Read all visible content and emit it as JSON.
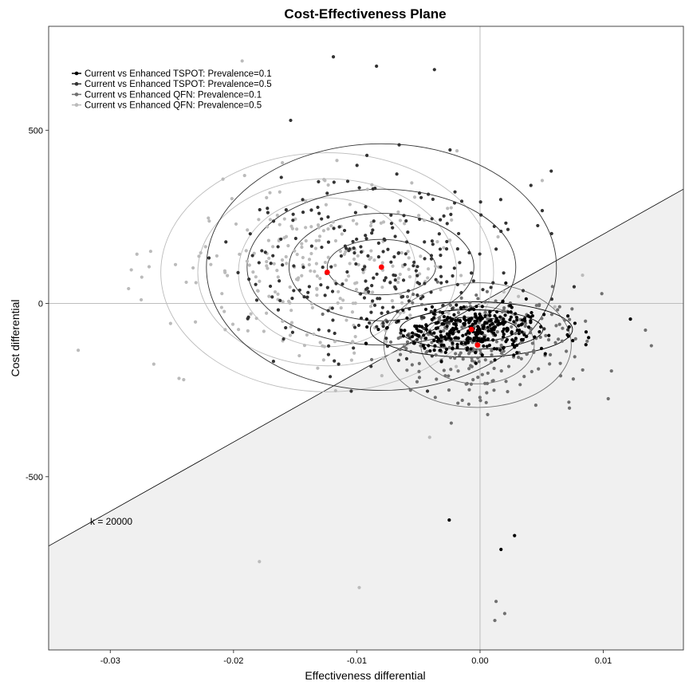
{
  "chart_data": {
    "type": "scatter",
    "title": "Cost-Effectiveness Plane",
    "xlabel": "Effectiveness differential",
    "ylabel": "Cost differential",
    "xlim": [
      -0.035,
      0.0165
    ],
    "ylim": [
      -1000,
      800
    ],
    "x_ticks": [
      {
        "value": -0.03,
        "label": "-0.03"
      },
      {
        "value": -0.02,
        "label": "-0.02"
      },
      {
        "value": -0.01,
        "label": "-0.01"
      },
      {
        "value": 0,
        "label": "0.00"
      },
      {
        "value": 0.01,
        "label": "0.01"
      }
    ],
    "y_ticks": [
      {
        "value": 500,
        "label": "500"
      },
      {
        "value": 0,
        "label": "0"
      },
      {
        "value": -500,
        "label": "-500"
      }
    ],
    "reference_lines": [
      "x = 0",
      "y = 0"
    ],
    "wtp_line": {
      "slope": 20000,
      "label": "k = 20000",
      "region_below_shaded": true,
      "shade_color": "#f0f0f0"
    },
    "legend_position": "top-left",
    "grid": false,
    "series": [
      {
        "name": "Current vs Enhanced TSPOT: Prevalence=0.1",
        "color": "#000000",
        "mean": [
          -0.0007,
          -75
        ],
        "sd": [
          0.0032,
          35
        ],
        "n": 330,
        "ellipse_radii": [
          [
            0.0082,
            80
          ],
          [
            0.0058,
            57
          ],
          [
            0.0037,
            35
          ]
        ]
      },
      {
        "name": "Current vs Enhanced TSPOT: Prevalence=0.5",
        "color": "#333333",
        "mean": [
          -0.008,
          105
        ],
        "sd": [
          0.0055,
          135
        ],
        "n": 280,
        "ellipse_radii": [
          [
            0.0142,
            356
          ],
          [
            0.0109,
            225
          ],
          [
            0.0075,
            155
          ],
          [
            0.0044,
            80
          ]
        ]
      },
      {
        "name": "Current vs Enhanced QFN: Prevalence=0.1",
        "color": "#707070",
        "mean": [
          -0.0002,
          -120
        ],
        "sd": [
          0.004,
          75
        ],
        "n": 260,
        "ellipse_radii": [
          [
            0.0076,
            180
          ],
          [
            0.0046,
            112
          ]
        ]
      },
      {
        "name": "Current vs Enhanced QFN: Prevalence=0.5",
        "color": "#bbbbbb",
        "mean": [
          -0.0124,
          90
        ],
        "sd": [
          0.0062,
          130
        ],
        "n": 280,
        "ellipse_radii": [
          [
            0.0135,
            345
          ],
          [
            0.0105,
            270
          ],
          [
            0.0072,
            215
          ]
        ]
      }
    ],
    "means_marker_color": "#ff0000",
    "outliers": [
      {
        "series": 1,
        "x": -0.0119,
        "y": 712
      },
      {
        "series": 1,
        "x": -0.0084,
        "y": 685
      },
      {
        "series": 1,
        "x": -0.0037,
        "y": 675
      },
      {
        "series": 0,
        "x": 0.0028,
        "y": -670
      },
      {
        "series": 0,
        "x": -0.0025,
        "y": -625
      },
      {
        "series": 0,
        "x": 0.0017,
        "y": -710
      },
      {
        "series": 2,
        "x": 0.0012,
        "y": -915
      },
      {
        "series": 2,
        "x": 0.002,
        "y": -895
      },
      {
        "series": 2,
        "x": 0.0013,
        "y": -860
      },
      {
        "series": 3,
        "x": -0.0326,
        "y": -135
      },
      {
        "series": 3,
        "x": -0.0179,
        "y": -745
      },
      {
        "series": 3,
        "x": -0.0098,
        "y": -820
      },
      {
        "series": 3,
        "x": -0.0193,
        "y": 700
      },
      {
        "series": 2,
        "x": 0.0139,
        "y": -122
      },
      {
        "series": 2,
        "x": 0.0104,
        "y": -275
      },
      {
        "series": 0,
        "x": 0.0122,
        "y": -45
      }
    ]
  }
}
